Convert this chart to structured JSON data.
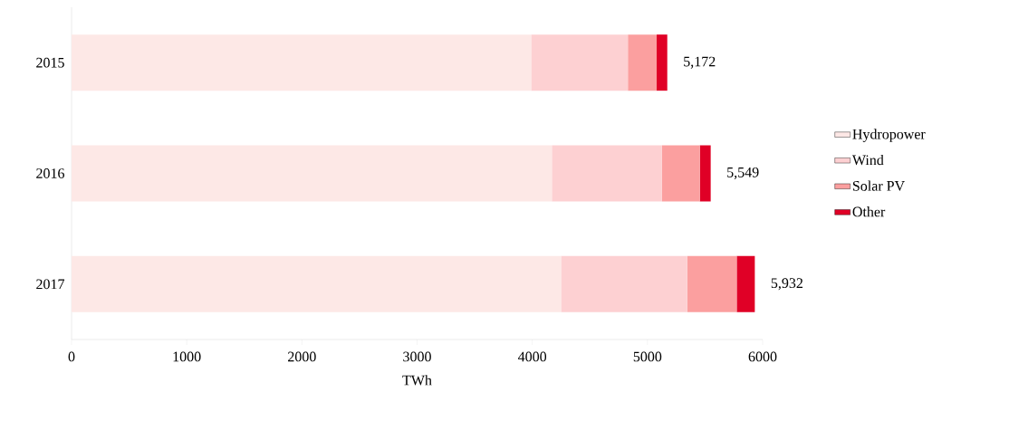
{
  "chart_data": {
    "type": "bar",
    "orientation": "horizontal",
    "stacked": true,
    "xlabel": "TWh",
    "categories": [
      "2015",
      "2016",
      "2017"
    ],
    "series": [
      {
        "name": "Hydropower",
        "color": "#fde8e6",
        "values": [
          3990,
          4170,
          4250
        ]
      },
      {
        "name": "Wind",
        "color": "#fdd0d2",
        "values": [
          840,
          955,
          1095
        ]
      },
      {
        "name": "Solar PV",
        "color": "#fb9f9f",
        "values": [
          250,
          330,
          430
        ]
      },
      {
        "name": "Other",
        "color": "#e00026",
        "values": [
          92,
          94,
          157
        ]
      }
    ],
    "totals": [
      "5,172",
      "5,549",
      "5,932"
    ],
    "xlim": [
      0,
      6000
    ],
    "xticks": [
      0,
      1000,
      2000,
      3000,
      4000,
      5000,
      6000
    ],
    "legend": "right",
    "grid": false
  }
}
